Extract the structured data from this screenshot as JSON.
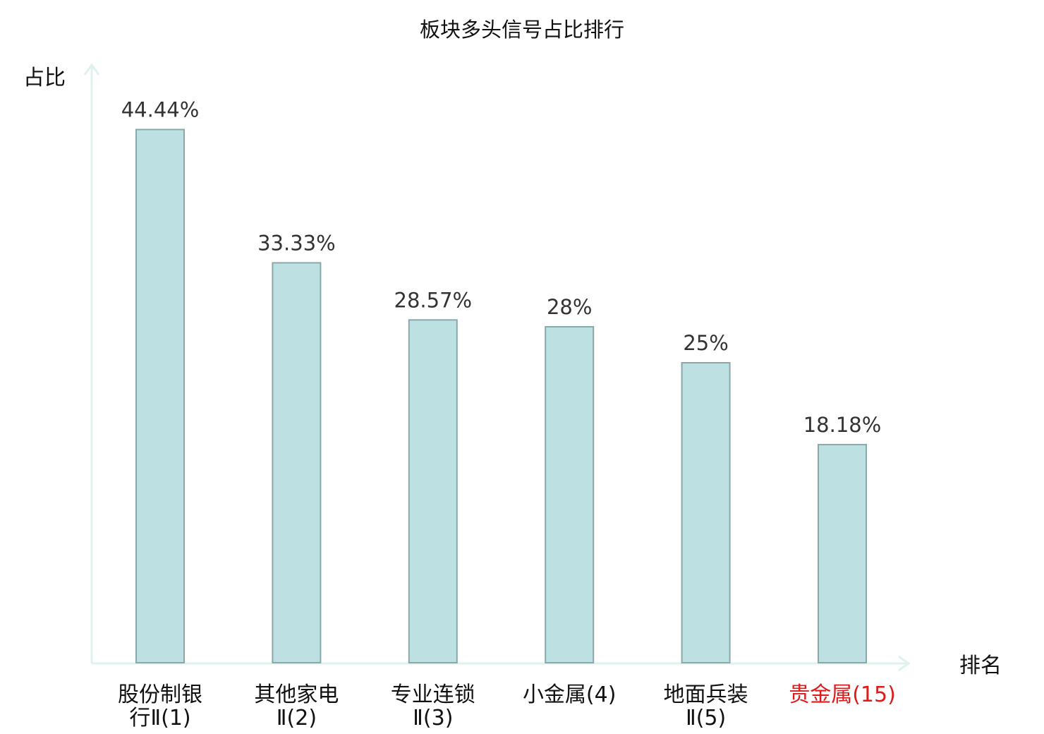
{
  "chart_data": {
    "type": "bar",
    "title": "板块多头信号占比排行",
    "ylabel": "占比",
    "xlabel": "排名",
    "ylim": [
      0,
      50
    ],
    "grid": false,
    "categories": [
      [
        "股份制银",
        "行Ⅱ(1)"
      ],
      [
        "其他家电",
        "Ⅱ(2)"
      ],
      [
        "专业连锁",
        "Ⅱ(3)"
      ],
      [
        "小金属(4)"
      ],
      [
        "地面兵装",
        "Ⅱ(5)"
      ],
      [
        "贵金属(15)"
      ]
    ],
    "highlight_index": 5,
    "values": [
      44.44,
      33.33,
      28.57,
      28,
      25,
      18.18
    ],
    "value_labels": [
      "44.44%",
      "33.33%",
      "28.57%",
      "28%",
      "25%",
      "18.18%"
    ]
  },
  "colors": {
    "bar_fill": "#bde1e3",
    "bar_stroke": "#8aa8aa",
    "axis": "#dff2ef",
    "highlight": "#e0191a"
  }
}
